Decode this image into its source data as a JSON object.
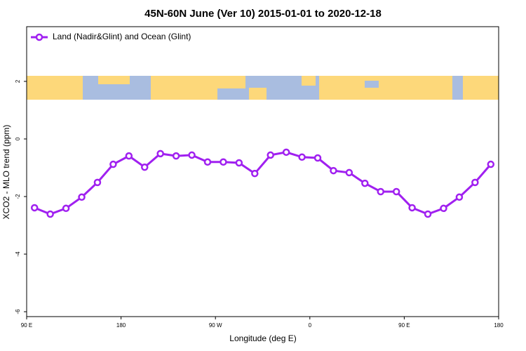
{
  "chart_data": {
    "type": "line",
    "title": "45N-60N June (Ver 10)   2015-01-01 to 2020-12-18",
    "x_label": "Longitude (deg E)",
    "y_label": "XCO2 - MLO trend (ppm)",
    "x": [
      97.5,
      112.5,
      127.5,
      142.5,
      157.5,
      172.5,
      187.5,
      202.5,
      217.5,
      232.5,
      247.5,
      262.5,
      277.5,
      292.5,
      307.5,
      322.5,
      337.5,
      352.5,
      367.5,
      382.5,
      397.5,
      412.5,
      427.5,
      442.5,
      457.5,
      472.5,
      487.5,
      502.5,
      517.5,
      532.5
    ],
    "series": [
      {
        "name": "Land (Nadir&Glint) and Ocean (Glint)",
        "color": "#a020f0",
        "values": [
          -2.39,
          -2.61,
          -2.41,
          -2.02,
          -1.51,
          -0.88,
          -0.59,
          -0.98,
          -0.51,
          -0.59,
          -0.56,
          -0.8,
          -0.8,
          -0.83,
          -1.2,
          -0.56,
          -0.46,
          -0.63,
          -0.66,
          -1.1,
          -1.17,
          -1.54,
          -1.83,
          -1.83,
          -2.39,
          -2.61,
          -2.41,
          -2.02,
          -1.51,
          -0.88
        ]
      }
    ],
    "xlim": [
      90,
      540
    ],
    "xticks": [
      {
        "value": 90,
        "label": "90 E"
      },
      {
        "value": 180,
        "label": "180"
      },
      {
        "value": 270,
        "label": "90 W"
      },
      {
        "value": 360,
        "label": "0"
      },
      {
        "value": 450,
        "label": "90 E"
      },
      {
        "value": 540,
        "label": "180"
      }
    ],
    "ylim": [
      -6.17,
      3.9
    ],
    "yticks": [
      2,
      0,
      -2,
      -4,
      -6
    ],
    "legend": "top-left"
  }
}
